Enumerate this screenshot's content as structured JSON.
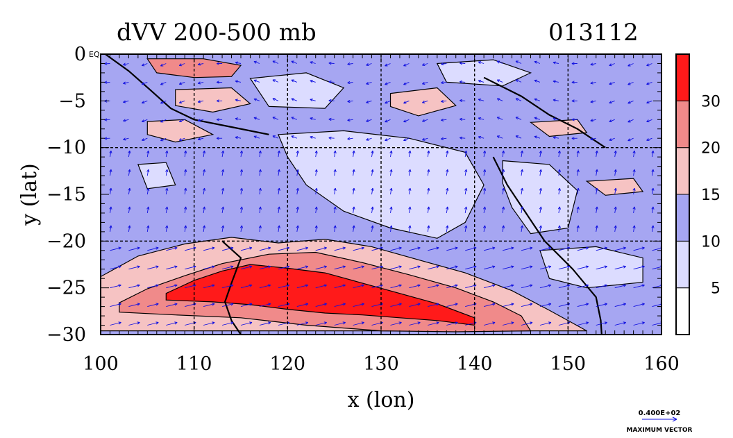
{
  "chart_data": {
    "type": "heatmap",
    "title": "dVV 200-500 mb",
    "date_label": "013112",
    "xlabel": "x (lon)",
    "ylabel": "y (lat)",
    "xlim": [
      100,
      160
    ],
    "ylim": [
      -30,
      0
    ],
    "x_ticks": [
      "100",
      "110",
      "120",
      "130",
      "140",
      "150",
      "160"
    ],
    "y_ticks": [
      "0",
      "−5",
      "−10",
      "−15",
      "−20",
      "−25",
      "−30"
    ],
    "corner_label": "EQ",
    "grid": true,
    "colorbar": {
      "levels": [
        0,
        5,
        10,
        15,
        20,
        30,
        40
      ],
      "labels": [
        "5",
        "10",
        "15",
        "20",
        "30"
      ],
      "colors": [
        "#ffffff",
        "#dcdcff",
        "#a6a6f2",
        "#f6c3c3",
        "#f08a8a",
        "#ff1a1a"
      ]
    },
    "contours": [
      {
        "level": 30,
        "points": [
          [
            107,
            -25.6
          ],
          [
            110,
            -24.2
          ],
          [
            113,
            -23.2
          ],
          [
            116,
            -22.5
          ],
          [
            120,
            -22.9
          ],
          [
            124,
            -23.4
          ],
          [
            128,
            -24.5
          ],
          [
            132,
            -25.6
          ],
          [
            136,
            -26.7
          ],
          [
            140,
            -28.2
          ],
          [
            140,
            -29.0
          ],
          [
            136,
            -28.5
          ],
          [
            132,
            -28.2
          ],
          [
            128,
            -27.9
          ],
          [
            124,
            -27.7
          ],
          [
            120,
            -27.3
          ],
          [
            116,
            -26.8
          ],
          [
            112,
            -26.5
          ],
          [
            107,
            -26.3
          ]
        ]
      },
      {
        "level": 20,
        "points": [
          [
            102,
            -26.6
          ],
          [
            105,
            -25.1
          ],
          [
            109,
            -23.7
          ],
          [
            113,
            -22.4
          ],
          [
            118,
            -21.4
          ],
          [
            123,
            -21.2
          ],
          [
            128,
            -22.3
          ],
          [
            133,
            -23.6
          ],
          [
            138,
            -25.0
          ],
          [
            142,
            -26.5
          ],
          [
            145,
            -28.0
          ],
          [
            146,
            -29.6
          ],
          [
            138,
            -29.7
          ],
          [
            130,
            -29.6
          ],
          [
            122,
            -29.0
          ],
          [
            115,
            -28.2
          ],
          [
            108,
            -27.9
          ],
          [
            102,
            -27.6
          ]
        ]
      },
      {
        "level": 15,
        "points": [
          [
            100,
            -23.8
          ],
          [
            104,
            -21.6
          ],
          [
            109,
            -20.3
          ],
          [
            114,
            -19.6
          ],
          [
            119,
            -20.2
          ],
          [
            124,
            -19.8
          ],
          [
            129,
            -20.6
          ],
          [
            134,
            -22.0
          ],
          [
            139,
            -23.4
          ],
          [
            144,
            -25.3
          ],
          [
            148,
            -27.4
          ],
          [
            152,
            -29.6
          ],
          [
            100,
            -29.6
          ]
        ]
      },
      {
        "level": 20,
        "points": [
          [
            105,
            -0.5
          ],
          [
            111,
            -0.5
          ],
          [
            115,
            -1.2
          ],
          [
            114,
            -2.4
          ],
          [
            110,
            -2.5
          ],
          [
            106,
            -2.0
          ]
        ]
      },
      {
        "level": 15,
        "points": [
          [
            108,
            -3.8
          ],
          [
            114,
            -3.6
          ],
          [
            116,
            -5.3
          ],
          [
            112,
            -6.2
          ],
          [
            108,
            -5.5
          ]
        ]
      },
      {
        "level": 15,
        "points": [
          [
            105,
            -7.2
          ],
          [
            109,
            -7.0
          ],
          [
            112,
            -8.6
          ],
          [
            108,
            -9.4
          ],
          [
            105,
            -8.6
          ]
        ]
      },
      {
        "level": 15,
        "points": [
          [
            131,
            -4.2
          ],
          [
            136,
            -3.6
          ],
          [
            138,
            -5.5
          ],
          [
            134,
            -6.6
          ],
          [
            131,
            -5.6
          ]
        ]
      },
      {
        "level": 15,
        "points": [
          [
            146,
            -7.3
          ],
          [
            151,
            -7.0
          ],
          [
            152,
            -8.4
          ],
          [
            148,
            -8.8
          ]
        ]
      },
      {
        "level": 15,
        "points": [
          [
            152,
            -13.6
          ],
          [
            157,
            -13.3
          ],
          [
            158,
            -14.7
          ],
          [
            154,
            -15.1
          ]
        ]
      },
      {
        "level": 5,
        "points": [
          [
            119,
            -8.6
          ],
          [
            126,
            -8.2
          ],
          [
            133,
            -9.0
          ],
          [
            139,
            -10.5
          ],
          [
            141,
            -14.0
          ],
          [
            139,
            -18.0
          ],
          [
            136,
            -19.7
          ],
          [
            131,
            -18.6
          ],
          [
            126,
            -16.8
          ],
          [
            122,
            -14.0
          ],
          [
            120,
            -11.0
          ]
        ]
      },
      {
        "level": 5,
        "points": [
          [
            143,
            -11.4
          ],
          [
            148,
            -11.8
          ],
          [
            151,
            -14.6
          ],
          [
            150,
            -18.6
          ],
          [
            146,
            -19.2
          ],
          [
            144,
            -16.4
          ],
          [
            143,
            -13.8
          ]
        ]
      },
      {
        "level": 5,
        "points": [
          [
            147,
            -21.0
          ],
          [
            153,
            -20.6
          ],
          [
            158,
            -21.8
          ],
          [
            158,
            -24.4
          ],
          [
            152,
            -25.0
          ],
          [
            148,
            -24.0
          ]
        ]
      },
      {
        "level": 5,
        "points": [
          [
            104,
            -11.8
          ],
          [
            107,
            -11.6
          ],
          [
            108,
            -14.0
          ],
          [
            105,
            -14.4
          ]
        ]
      },
      {
        "level": 5,
        "points": [
          [
            136,
            -1.0
          ],
          [
            142,
            -0.6
          ],
          [
            146,
            -2.0
          ],
          [
            143,
            -3.4
          ],
          [
            137,
            -3.0
          ]
        ]
      },
      {
        "level": 5,
        "points": [
          [
            116,
            -2.6
          ],
          [
            122,
            -2.0
          ],
          [
            126,
            -3.6
          ],
          [
            124,
            -5.8
          ],
          [
            118,
            -5.6
          ]
        ]
      }
    ],
    "coastlines": [
      [
        [
          100.5,
          0
        ],
        [
          103,
          -1.8
        ],
        [
          105.5,
          -4.0
        ],
        [
          107.5,
          -5.8
        ],
        [
          110,
          -7.0
        ],
        [
          114,
          -7.8
        ],
        [
          118,
          -8.6
        ]
      ],
      [
        [
          113,
          -20
        ],
        [
          115,
          -21.8
        ],
        [
          114,
          -24.5
        ],
        [
          113.3,
          -26.5
        ],
        [
          114,
          -28.5
        ],
        [
          115,
          -30
        ]
      ],
      [
        [
          141,
          -2.5
        ],
        [
          145,
          -4.5
        ],
        [
          148,
          -6.5
        ],
        [
          151,
          -8.0
        ],
        [
          154,
          -10.0
        ]
      ],
      [
        [
          142,
          -11
        ],
        [
          143.5,
          -14.0
        ],
        [
          145.5,
          -17.0
        ],
        [
          147.5,
          -20.0
        ],
        [
          150.5,
          -23.0
        ],
        [
          153,
          -26.0
        ],
        [
          153.5,
          -28.5
        ],
        [
          153.6,
          -30
        ]
      ]
    ],
    "vectors": {
      "spacing_deg": 2.0,
      "max_vector_label": "0.400E+02",
      "max_vector_caption": "MAXIMUM VECTOR"
    }
  },
  "colors": {
    "axis": "#000000",
    "vector": "#1010e0",
    "grid": "#000000"
  }
}
